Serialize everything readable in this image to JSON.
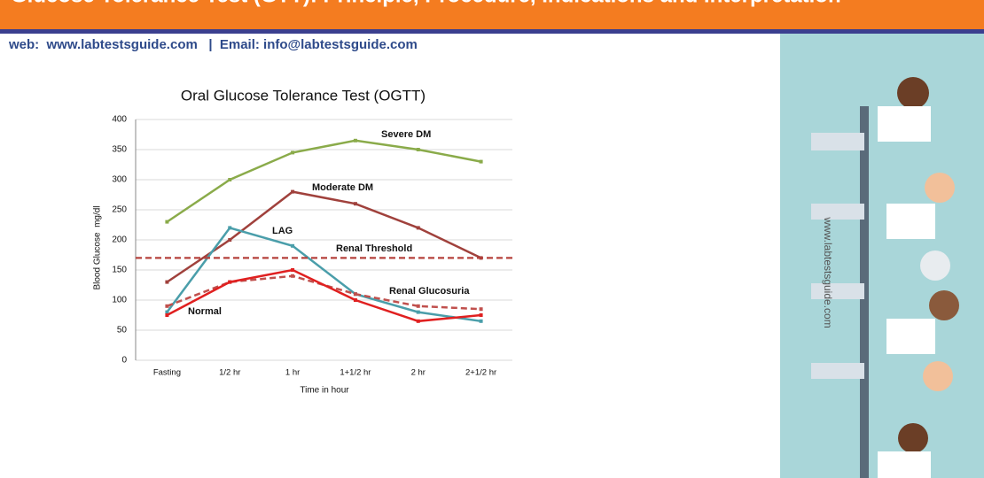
{
  "header": {
    "title": "Glucose Tolerance Test (GTT): Principle, Procedure, Indications and Interpretation",
    "contact": "web:  www.labtestsguide.com   |  Email: info@labtestsguide.com",
    "side_text": "www.labtestsguide.com"
  },
  "chart_data": {
    "type": "line",
    "title": "Oral Glucose Tolerance Test (OGTT)",
    "x_label": "Time in hour",
    "y_label": "Blood Glucose  mg/dl",
    "categories": [
      "Fasting",
      "1/2 hr",
      "1 hr",
      "1+1/2 hr",
      "2 hr",
      "2+1/2 hr"
    ],
    "ylim": [
      0,
      400
    ],
    "yticks": [
      0,
      50,
      100,
      150,
      200,
      250,
      300,
      350,
      400
    ],
    "grid": true,
    "series": [
      {
        "name": "Severe DM",
        "color": "#8aab4a",
        "line_style": "solid",
        "values": [
          230,
          300,
          345,
          365,
          350,
          330
        ]
      },
      {
        "name": "Moderate DM",
        "color": "#a0413c",
        "line_style": "solid",
        "values": [
          130,
          200,
          280,
          260,
          220,
          170
        ]
      },
      {
        "name": "LAG",
        "color": "#4a9eaa",
        "line_style": "solid",
        "values": [
          80,
          220,
          190,
          110,
          80,
          65
        ]
      },
      {
        "name": "Renal Threshold",
        "color": "#b5413c",
        "line_style": "dashed",
        "values": [
          170,
          170,
          170,
          170,
          170,
          170
        ]
      },
      {
        "name": "Renal Glucosuria",
        "color": "#c0504d",
        "line_style": "dashed",
        "values": [
          90,
          130,
          140,
          110,
          90,
          85
        ]
      },
      {
        "name": "Normal",
        "color": "#e02020",
        "line_style": "solid",
        "values": [
          75,
          130,
          150,
          100,
          65,
          75
        ]
      }
    ]
  }
}
